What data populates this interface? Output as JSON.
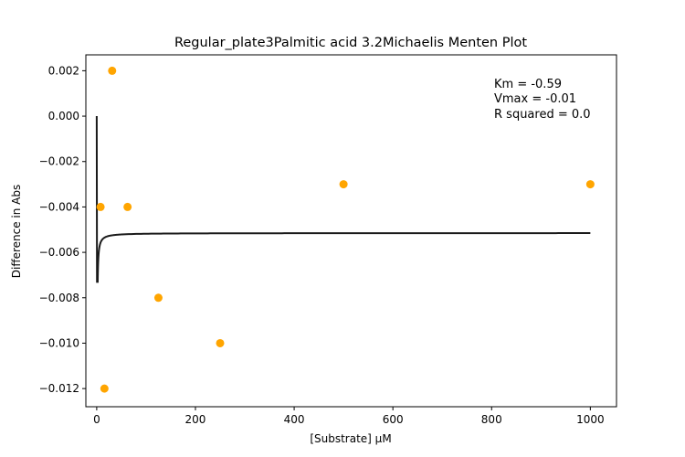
{
  "chart_data": {
    "type": "scatter",
    "title": "Regular_plate3Palmitic acid 3.2Michaelis Menten Plot",
    "xlabel": "[Substrate] µM",
    "ylabel": "Difference in Abs",
    "xlim": [
      -22,
      1053
    ],
    "ylim": [
      -0.0128,
      0.0027
    ],
    "x_ticks": [
      0,
      200,
      400,
      600,
      800,
      1000
    ],
    "x_tick_labels": [
      "0",
      "200",
      "400",
      "600",
      "800",
      "1000"
    ],
    "y_ticks": [
      0.002,
      0.0,
      -0.002,
      -0.004,
      -0.006,
      -0.008,
      -0.01,
      -0.012
    ],
    "y_tick_labels": [
      "0.002",
      "0.000",
      "−0.002",
      "−0.004",
      "−0.006",
      "−0.008",
      "−0.010",
      "−0.012"
    ],
    "grid": false,
    "series": [
      {
        "kind": "scatter",
        "color": "#ffa500",
        "x": [
          7.8,
          15.6,
          31.25,
          62.5,
          125,
          250,
          500,
          1000
        ],
        "y": [
          -0.004,
          -0.012,
          0.002,
          -0.004,
          -0.008,
          -0.01,
          -0.003,
          -0.003
        ]
      },
      {
        "kind": "fit-line",
        "color": "#1a1a1a",
        "model": "michaelis-menten",
        "x_range": [
          0,
          1000
        ]
      }
    ],
    "annotations": [
      "Km = -0.59",
      "Vmax = -0.01",
      "R squared = 0.0"
    ],
    "fit": {
      "Km": -0.59,
      "Vmax": -0.00515
    }
  }
}
